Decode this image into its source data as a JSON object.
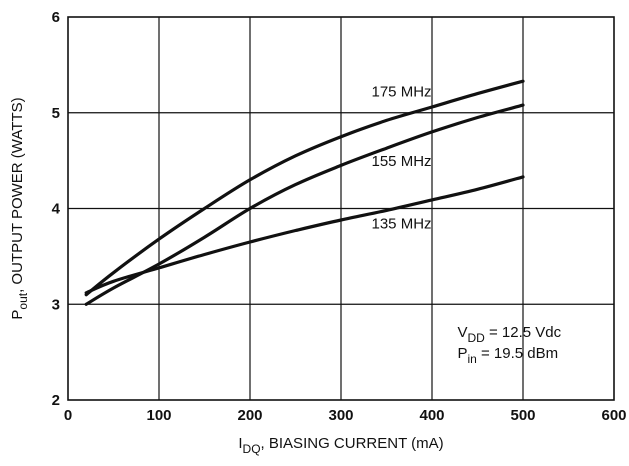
{
  "chart_data": {
    "type": "line",
    "xlabel": {
      "main": "I",
      "sub": "DQ",
      "rest": ", BIASING CURRENT (mA)"
    },
    "ylabel": {
      "main": "P",
      "sub": "out",
      "rest": ", OUTPUT POWER (WATTS)"
    },
    "xlim": [
      0,
      600
    ],
    "ylim": [
      2,
      6
    ],
    "xticks": [
      "0",
      "100",
      "200",
      "300",
      "400",
      "500",
      "600"
    ],
    "yticks": [
      "2",
      "3",
      "4",
      "5",
      "6"
    ],
    "grid": true,
    "series": [
      {
        "name": "175 MHz",
        "x": [
          20,
          50,
          100,
          150,
          200,
          250,
          300,
          350,
          400,
          450,
          500
        ],
        "y": [
          3.1,
          3.33,
          3.68,
          4.0,
          4.3,
          4.55,
          4.75,
          4.92,
          5.06,
          5.2,
          5.33
        ]
      },
      {
        "name": "155 MHz",
        "x": [
          20,
          50,
          100,
          150,
          200,
          250,
          300,
          350,
          400,
          450,
          500
        ],
        "y": [
          3.0,
          3.17,
          3.42,
          3.7,
          4.0,
          4.25,
          4.45,
          4.63,
          4.8,
          4.95,
          5.08
        ]
      },
      {
        "name": "135 MHz",
        "x": [
          20,
          50,
          100,
          150,
          200,
          250,
          300,
          350,
          400,
          450,
          500
        ],
        "y": [
          3.12,
          3.24,
          3.38,
          3.52,
          3.65,
          3.77,
          3.88,
          3.98,
          4.09,
          4.2,
          4.33
        ]
      }
    ],
    "annotations": {
      "vdd": {
        "main": "V",
        "sub": "DD",
        "rest": " = 12.5 Vdc"
      },
      "pin": {
        "main": "P",
        "sub": "in",
        "rest": " = 19.5 dBm"
      }
    }
  }
}
